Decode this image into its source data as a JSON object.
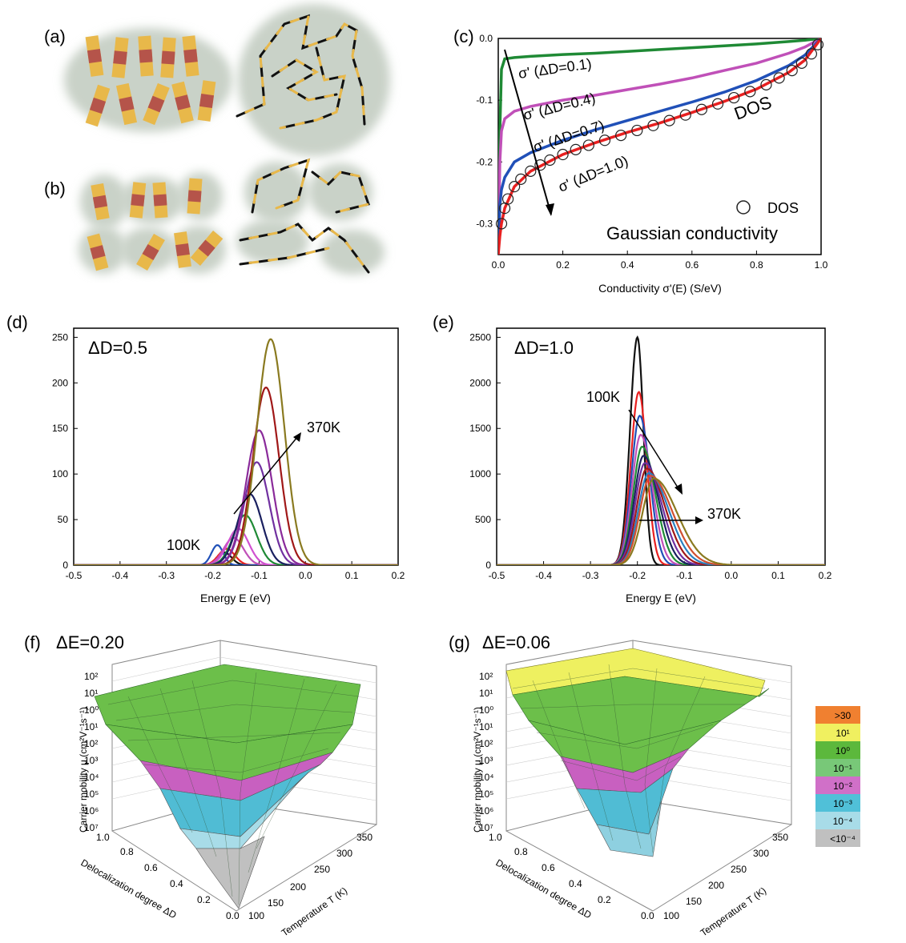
{
  "labels": {
    "a": "(a)",
    "b": "(b)",
    "c": "(c)",
    "d": "(d)",
    "e": "(e)",
    "f": "(f)",
    "g": "(g)"
  },
  "colors": {
    "chain_segment": "#e8b84a",
    "chain_core": "#b5544a",
    "blob": "#c9d2c8",
    "wire": "#111111",
    "green": "#1f8a35",
    "magenta": "#c050b8",
    "blue": "#2050b8",
    "red": "#e82020",
    "dos_marker": "#222222"
  },
  "chart_data": [
    {
      "panel": "c",
      "type": "line",
      "xlabel": "Conductivity σ'(E)  (S/eV)",
      "ylabel": "",
      "xlim": [
        0.0,
        1.0
      ],
      "ylim": [
        -0.35,
        0.0
      ],
      "xticks": [
        "0.0",
        "0.2",
        "0.4",
        "0.6",
        "0.8",
        "1.0"
      ],
      "yticks": [
        "0.0",
        "-0.1",
        "-0.2",
        "-0.3"
      ],
      "series": [
        {
          "name": "σ' (ΔD=0.1)",
          "color": "#1f8a35",
          "x": [
            0.0,
            0.005,
            0.01,
            0.02,
            0.05,
            0.1,
            0.2,
            0.3,
            0.4,
            0.5,
            0.6,
            0.7,
            0.8,
            0.9,
            0.95,
            1.0
          ],
          "y": [
            -0.35,
            -0.15,
            -0.05,
            -0.033,
            -0.031,
            -0.029,
            -0.026,
            -0.024,
            -0.021,
            -0.018,
            -0.015,
            -0.012,
            -0.009,
            -0.005,
            -0.003,
            0.0
          ]
        },
        {
          "name": "σ' (ΔD=0.4)",
          "color": "#c050b8",
          "x": [
            0.0,
            0.005,
            0.01,
            0.02,
            0.05,
            0.1,
            0.2,
            0.3,
            0.4,
            0.5,
            0.6,
            0.7,
            0.8,
            0.9,
            0.95,
            1.0
          ],
          "y": [
            -0.35,
            -0.2,
            -0.15,
            -0.13,
            -0.118,
            -0.11,
            -0.1,
            -0.092,
            -0.083,
            -0.074,
            -0.064,
            -0.052,
            -0.04,
            -0.024,
            -0.014,
            0.0
          ]
        },
        {
          "name": "σ' (ΔD=0.7)",
          "color": "#2050b8",
          "x": [
            0.0,
            0.005,
            0.01,
            0.02,
            0.05,
            0.1,
            0.2,
            0.3,
            0.4,
            0.5,
            0.6,
            0.7,
            0.8,
            0.9,
            0.95,
            1.0
          ],
          "y": [
            -0.35,
            -0.27,
            -0.245,
            -0.225,
            -0.2,
            -0.185,
            -0.165,
            -0.148,
            -0.133,
            -0.118,
            -0.103,
            -0.087,
            -0.068,
            -0.044,
            -0.027,
            0.0
          ]
        },
        {
          "name": "σ' (ΔD=1.0)",
          "color": "#e82020",
          "x": [
            0.0,
            0.005,
            0.01,
            0.02,
            0.05,
            0.1,
            0.2,
            0.3,
            0.4,
            0.5,
            0.6,
            0.7,
            0.8,
            0.9,
            0.95,
            1.0
          ],
          "y": [
            -0.35,
            -0.32,
            -0.3,
            -0.275,
            -0.24,
            -0.215,
            -0.188,
            -0.169,
            -0.152,
            -0.137,
            -0.12,
            -0.102,
            -0.082,
            -0.055,
            -0.035,
            0.0
          ]
        },
        {
          "name": "DOS",
          "marker": "circle",
          "x": [
            0.01,
            0.02,
            0.03,
            0.05,
            0.07,
            0.1,
            0.13,
            0.16,
            0.2,
            0.24,
            0.28,
            0.33,
            0.38,
            0.43,
            0.48,
            0.53,
            0.58,
            0.63,
            0.68,
            0.73,
            0.78,
            0.83,
            0.87,
            0.91,
            0.94,
            0.97,
            0.99
          ],
          "y": [
            -0.3,
            -0.275,
            -0.26,
            -0.24,
            -0.228,
            -0.215,
            -0.205,
            -0.197,
            -0.188,
            -0.18,
            -0.173,
            -0.165,
            -0.157,
            -0.149,
            -0.141,
            -0.133,
            -0.124,
            -0.115,
            -0.106,
            -0.096,
            -0.086,
            -0.075,
            -0.064,
            -0.052,
            -0.04,
            -0.025,
            -0.01
          ]
        }
      ],
      "annotations": [
        "σ' (ΔD=0.1)",
        "σ' (ΔD=0.4)",
        "σ' (ΔD=0.7)",
        "σ' (ΔD=1.0)",
        "DOS"
      ],
      "legend": {
        "marker_label": "DOS",
        "line_label": "Gaussian conductivity"
      }
    },
    {
      "panel": "d",
      "type": "line",
      "title": "ΔD=0.5",
      "xlabel": "Energy E (eV)",
      "xlim": [
        -0.5,
        0.2
      ],
      "ylim": [
        0,
        260
      ],
      "xticks": [
        "-0.5",
        "-0.4",
        "-0.3",
        "-0.2",
        "-0.1",
        "0.0",
        "0.1",
        "0.2"
      ],
      "yticks": [
        "0",
        "50",
        "100",
        "150",
        "200",
        "250"
      ],
      "curve_shape": "gaussian",
      "series": [
        {
          "color": "#111111",
          "peak_x": -0.175,
          "peak_y": 14,
          "width": 0.022
        },
        {
          "color": "#e82020",
          "peak_x": -0.17,
          "peak_y": 18,
          "width": 0.025
        },
        {
          "color": "#2050b8",
          "peak_x": -0.19,
          "peak_y": 22,
          "width": 0.018
        },
        {
          "color": "#c050b8",
          "peak_x": -0.155,
          "peak_y": 30,
          "width": 0.03
        },
        {
          "color": "#d050d0",
          "peak_x": -0.145,
          "peak_y": 40,
          "width": 0.032
        },
        {
          "color": "#1f8a35",
          "peak_x": -0.13,
          "peak_y": 55,
          "width": 0.035
        },
        {
          "color": "#1a2060",
          "peak_x": -0.12,
          "peak_y": 78,
          "width": 0.037
        },
        {
          "color": "#7030a0",
          "peak_x": -0.105,
          "peak_y": 113,
          "width": 0.038
        },
        {
          "color": "#8a2a9a",
          "peak_x": -0.1,
          "peak_y": 148,
          "width": 0.04
        },
        {
          "color": "#a01818",
          "peak_x": -0.085,
          "peak_y": 195,
          "width": 0.04
        },
        {
          "color": "#8a7a20",
          "peak_x": -0.075,
          "peak_y": 248,
          "width": 0.042
        }
      ],
      "annotations": [
        "100K",
        "370K"
      ]
    },
    {
      "panel": "e",
      "type": "line",
      "title": "ΔD=1.0",
      "xlabel": "Energy E (eV)",
      "xlim": [
        -0.5,
        0.2
      ],
      "ylim": [
        0,
        2600
      ],
      "xticks": [
        "-0.5",
        "-0.4",
        "-0.3",
        "-0.2",
        "-0.1",
        "0.0",
        "0.1",
        "0.2"
      ],
      "yticks": [
        "0",
        "500",
        "1000",
        "1500",
        "2000",
        "2500"
      ],
      "curve_shape": "skewed",
      "series": [
        {
          "color": "#111111",
          "peak_x": -0.2,
          "peak_y": 2500,
          "wl": 0.022,
          "wr": 0.018
        },
        {
          "color": "#e82020",
          "peak_x": -0.197,
          "peak_y": 1900,
          "wl": 0.024,
          "wr": 0.024
        },
        {
          "color": "#2050b8",
          "peak_x": -0.195,
          "peak_y": 1640,
          "wl": 0.025,
          "wr": 0.03
        },
        {
          "color": "#c050b8",
          "peak_x": -0.193,
          "peak_y": 1430,
          "wl": 0.026,
          "wr": 0.035
        },
        {
          "color": "#1f8a35",
          "peak_x": -0.19,
          "peak_y": 1300,
          "wl": 0.027,
          "wr": 0.04
        },
        {
          "color": "#1a2060",
          "peak_x": -0.187,
          "peak_y": 1200,
          "wl": 0.028,
          "wr": 0.045
        },
        {
          "color": "#7030a0",
          "peak_x": -0.184,
          "peak_y": 1120,
          "wl": 0.029,
          "wr": 0.05
        },
        {
          "color": "#a01818",
          "peak_x": -0.18,
          "peak_y": 1060,
          "wl": 0.03,
          "wr": 0.055
        },
        {
          "color": "#2a80c0",
          "peak_x": -0.176,
          "peak_y": 1010,
          "wl": 0.031,
          "wr": 0.06
        },
        {
          "color": "#d05030",
          "peak_x": -0.172,
          "peak_y": 980,
          "wl": 0.032,
          "wr": 0.065
        },
        {
          "color": "#8a7a20",
          "peak_x": -0.165,
          "peak_y": 950,
          "wl": 0.034,
          "wr": 0.07
        }
      ],
      "annotations": [
        "100K",
        "370K"
      ]
    },
    {
      "panel": "f",
      "type": "surface",
      "title": "ΔE=0.20",
      "zlabel": "Carrier mobility μ (cm²V⁻¹s⁻¹)",
      "xlabel": "Delocalization degree ΔD",
      "ylabel": "Temperature T (K)",
      "zticks": [
        "10⁷",
        "10⁶",
        "10⁵",
        "10⁴",
        "10³",
        "10²",
        "10¹",
        "10⁰",
        "10¹",
        "10²"
      ],
      "xticks": [
        "1.0",
        "0.8",
        "0.6",
        "0.4",
        "0.2",
        "0.0"
      ],
      "yticks": [
        "100",
        "150",
        "200",
        "250",
        "300",
        "350"
      ]
    },
    {
      "panel": "g",
      "type": "surface",
      "title": "ΔE=0.06",
      "zlabel": "Carrier mobility μ (cm²V⁻¹s⁻¹)",
      "xlabel": "Delocalization degree ΔD",
      "ylabel": "Temperature T (K)",
      "zticks": [
        "10⁷",
        "10⁶",
        "10⁵",
        "10⁴",
        "10³",
        "10²",
        "10¹",
        "10⁰",
        "10¹",
        "10²"
      ],
      "xticks": [
        "1.0",
        "0.8",
        "0.6",
        "0.4",
        "0.2",
        "0.0"
      ],
      "yticks": [
        "100",
        "150",
        "200",
        "250",
        "300",
        "350"
      ],
      "colorbar": [
        {
          "label": ">30",
          "color": "#f08030"
        },
        {
          "label": "10¹",
          "color": "#f0f060"
        },
        {
          "label": "10⁰",
          "color": "#5cb83c"
        },
        {
          "label": "10⁻¹",
          "color": "#78c878"
        },
        {
          "label": "10⁻²",
          "color": "#d070c8"
        },
        {
          "label": "10⁻³",
          "color": "#50c0d8"
        },
        {
          "label": "10⁻⁴",
          "color": "#a8dce8"
        },
        {
          "label": "<10⁻⁴",
          "color": "#c0c0c0"
        }
      ]
    }
  ]
}
